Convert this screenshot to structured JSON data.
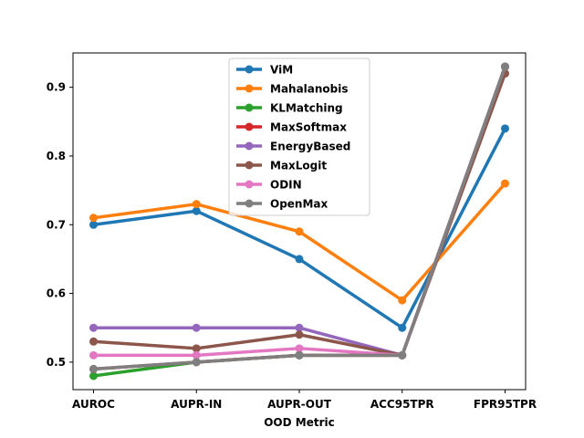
{
  "chart_data": {
    "type": "line",
    "title": "",
    "xlabel": "OOD Metric",
    "ylabel": "",
    "categories": [
      "AUROC",
      "AUPR-IN",
      "AUPR-OUT",
      "ACC95TPR",
      "FPR95TPR"
    ],
    "ylim": [
      0.46,
      0.95
    ],
    "yticks": [
      0.5,
      0.6,
      0.7,
      0.8,
      0.9
    ],
    "ytick_labels": [
      "0.5",
      "0.6",
      "0.7",
      "0.8",
      "0.9"
    ],
    "grid": false,
    "legend_position": "top-center",
    "series": [
      {
        "name": "ViM",
        "color": "#1f77b4",
        "values": [
          0.7,
          0.72,
          0.65,
          0.55,
          0.84
        ]
      },
      {
        "name": "Mahalanobis",
        "color": "#ff7f0e",
        "values": [
          0.71,
          0.73,
          0.69,
          0.59,
          0.76
        ]
      },
      {
        "name": "KLMatching",
        "color": "#2ca02c",
        "values": [
          0.48,
          0.5,
          0.51,
          0.51,
          0.93
        ]
      },
      {
        "name": "MaxSoftmax",
        "color": "#d62728",
        "values": [
          0.49,
          0.5,
          0.51,
          0.51,
          0.93
        ]
      },
      {
        "name": "EnergyBased",
        "color": "#9467bd",
        "values": [
          0.55,
          0.55,
          0.55,
          0.51,
          0.93
        ]
      },
      {
        "name": "MaxLogit",
        "color": "#8c564b",
        "values": [
          0.53,
          0.52,
          0.54,
          0.51,
          0.92
        ]
      },
      {
        "name": "ODIN",
        "color": "#e377c2",
        "values": [
          0.51,
          0.51,
          0.52,
          0.51,
          0.93
        ]
      },
      {
        "name": "OpenMax",
        "color": "#7f7f7f",
        "values": [
          0.49,
          0.5,
          0.51,
          0.51,
          0.93
        ]
      }
    ]
  }
}
